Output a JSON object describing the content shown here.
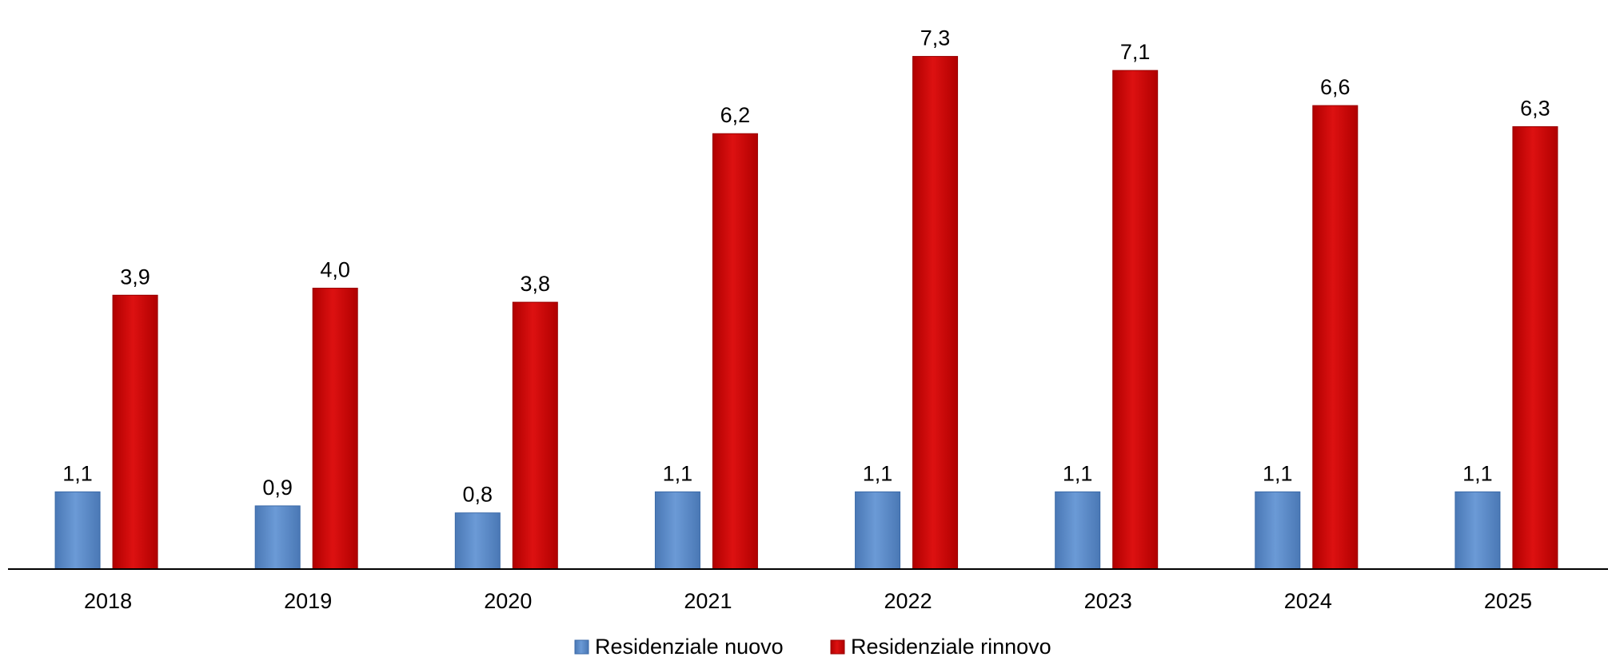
{
  "chart_data": {
    "type": "bar",
    "categories": [
      "2018",
      "2019",
      "2020",
      "2021",
      "2022",
      "2023",
      "2024",
      "2025"
    ],
    "series": [
      {
        "name": "Residenziale nuovo",
        "values": [
          1.1,
          0.9,
          0.8,
          1.1,
          1.1,
          1.1,
          1.1,
          1.1
        ],
        "labels": [
          "1,1",
          "0,9",
          "0,8",
          "1,1",
          "1,1",
          "1,1",
          "1,1",
          "1,1"
        ],
        "color": "#5B8BC9"
      },
      {
        "name": "Residenziale rinnovo",
        "values": [
          3.9,
          4.0,
          3.8,
          6.2,
          7.3,
          7.1,
          6.6,
          6.3
        ],
        "labels": [
          "3,9",
          "4,0",
          "3,8",
          "6,2",
          "7,3",
          "7,1",
          "6,6",
          "6,3"
        ],
        "color": "#CC0000"
      }
    ],
    "ylim": [
      0,
      7.5
    ],
    "grid": false,
    "legend_position": "bottom"
  }
}
